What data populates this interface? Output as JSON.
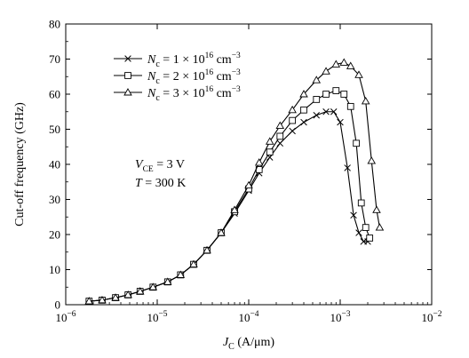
{
  "chart_data": {
    "type": "line",
    "xscale": "log",
    "xlim": [
      1e-06,
      0.01
    ],
    "ylim": [
      0,
      80
    ],
    "yticks": [
      0,
      10,
      20,
      30,
      40,
      50,
      60,
      70,
      80
    ],
    "xticks": [
      {
        "value": 1e-06,
        "base": "10",
        "exp": "−6"
      },
      {
        "value": 1e-05,
        "base": "10",
        "exp": "−5"
      },
      {
        "value": 0.0001,
        "base": "10",
        "exp": "−4"
      },
      {
        "value": 0.001,
        "base": "10",
        "exp": "−3"
      },
      {
        "value": 0.01,
        "base": "10",
        "exp": "−2"
      }
    ],
    "ylabel": "Cut-off frequency (GHz)",
    "xlabel": {
      "main": "J",
      "sub": "C",
      "unit": " (A/μm)"
    },
    "annotations": [
      {
        "main": "V",
        "sub": "CE",
        "rest": " = 3 V"
      },
      {
        "main": "T",
        "sub": "",
        "rest": " = 300 K"
      }
    ],
    "legend_position": "top-left",
    "series": [
      {
        "legend": {
          "n": "N",
          "sub": "c",
          "eq": " = 1 × 10",
          "sup": "16",
          "unit": " cm",
          "unit_sup": "−3"
        },
        "marker": "x",
        "points": [
          [
            1.8e-06,
            1.0
          ],
          [
            2.5e-06,
            1.3
          ],
          [
            3.5e-06,
            2.0
          ],
          [
            4.8e-06,
            2.8
          ],
          [
            6.5e-06,
            3.8
          ],
          [
            9e-06,
            5.0
          ],
          [
            1.3e-05,
            6.5
          ],
          [
            1.8e-05,
            8.5
          ],
          [
            2.5e-05,
            11.5
          ],
          [
            3.5e-05,
            15.5
          ],
          [
            5e-05,
            20.5
          ],
          [
            7e-05,
            26.0
          ],
          [
            0.0001,
            32.5
          ],
          [
            0.00013,
            37.5
          ],
          [
            0.00017,
            42.0
          ],
          [
            0.00022,
            46.0
          ],
          [
            0.0003,
            49.5
          ],
          [
            0.0004,
            52.0
          ],
          [
            0.00055,
            54.0
          ],
          [
            0.0007,
            55.0
          ],
          [
            0.00085,
            55.0
          ],
          [
            0.001,
            52.0
          ],
          [
            0.0012,
            39.0
          ],
          [
            0.0014,
            25.5
          ],
          [
            0.0016,
            20.5
          ],
          [
            0.0018,
            18.0
          ],
          [
            0.002,
            18.0
          ]
        ]
      },
      {
        "legend": {
          "n": "N",
          "sub": "c",
          "eq": " = 2 × 10",
          "sup": "16",
          "unit": " cm",
          "unit_sup": "−3"
        },
        "marker": "square",
        "points": [
          [
            1.8e-06,
            1.0
          ],
          [
            2.5e-06,
            1.3
          ],
          [
            3.5e-06,
            2.0
          ],
          [
            4.8e-06,
            2.8
          ],
          [
            6.5e-06,
            3.8
          ],
          [
            9e-06,
            5.0
          ],
          [
            1.3e-05,
            6.5
          ],
          [
            1.8e-05,
            8.5
          ],
          [
            2.5e-05,
            11.5
          ],
          [
            3.5e-05,
            15.5
          ],
          [
            5e-05,
            20.5
          ],
          [
            7e-05,
            26.5
          ],
          [
            0.0001,
            33.0
          ],
          [
            0.00013,
            38.5
          ],
          [
            0.00017,
            43.5
          ],
          [
            0.00022,
            48.0
          ],
          [
            0.0003,
            52.5
          ],
          [
            0.0004,
            55.5
          ],
          [
            0.00055,
            58.5
          ],
          [
            0.0007,
            60.0
          ],
          [
            0.0009,
            61.0
          ],
          [
            0.0011,
            60.0
          ],
          [
            0.0013,
            56.5
          ],
          [
            0.0015,
            46.0
          ],
          [
            0.0017,
            29.0
          ],
          [
            0.0019,
            22.0
          ],
          [
            0.0021,
            19.0
          ]
        ]
      },
      {
        "legend": {
          "n": "N",
          "sub": "c",
          "eq": " = 3 × 10",
          "sup": "16",
          "unit": " cm",
          "unit_sup": "−3"
        },
        "marker": "triangle",
        "points": [
          [
            1.8e-06,
            1.0
          ],
          [
            2.5e-06,
            1.3
          ],
          [
            3.5e-06,
            2.0
          ],
          [
            4.8e-06,
            2.8
          ],
          [
            6.5e-06,
            3.8
          ],
          [
            9e-06,
            5.0
          ],
          [
            1.3e-05,
            6.5
          ],
          [
            1.8e-05,
            8.5
          ],
          [
            2.5e-05,
            11.5
          ],
          [
            3.5e-05,
            15.5
          ],
          [
            5e-05,
            20.5
          ],
          [
            7e-05,
            27.0
          ],
          [
            0.0001,
            34.0
          ],
          [
            0.00013,
            40.5
          ],
          [
            0.00017,
            46.5
          ],
          [
            0.00022,
            51.0
          ],
          [
            0.0003,
            55.5
          ],
          [
            0.0004,
            60.0
          ],
          [
            0.00055,
            64.0
          ],
          [
            0.0007,
            66.5
          ],
          [
            0.0009,
            68.5
          ],
          [
            0.0011,
            69.0
          ],
          [
            0.0013,
            68.0
          ],
          [
            0.0016,
            65.5
          ],
          [
            0.0019,
            58.0
          ],
          [
            0.0022,
            41.0
          ],
          [
            0.0025,
            27.0
          ],
          [
            0.0027,
            22.0
          ]
        ]
      }
    ]
  }
}
